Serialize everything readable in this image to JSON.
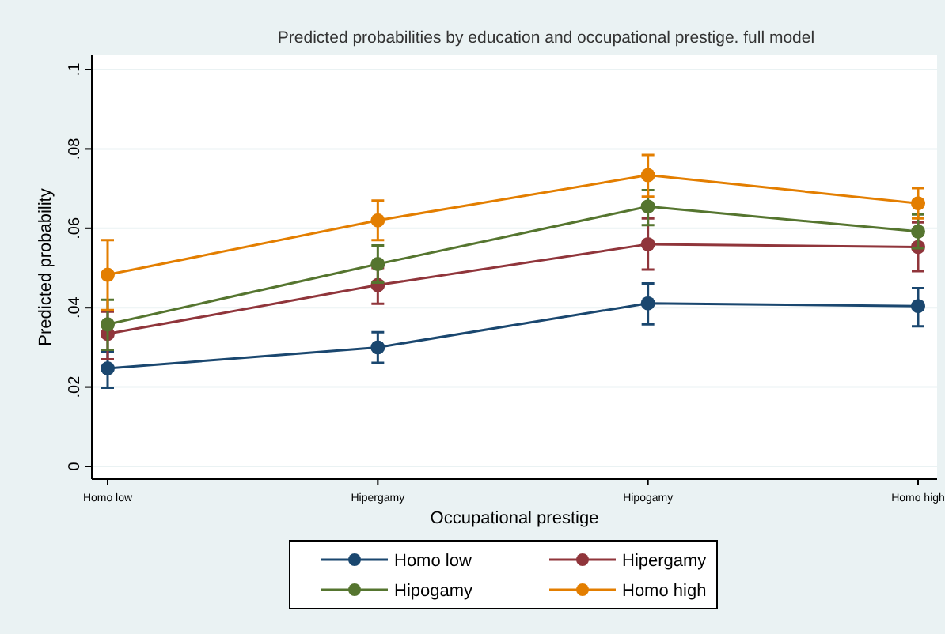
{
  "chart_data": {
    "type": "line",
    "title": "Predicted probabilities by education and occupational prestige. full model",
    "xlabel": "Occupational prestige",
    "ylabel": "Predicted probability",
    "categories": [
      "Homo low",
      "Hipergamy",
      "Hipogamy",
      "Homo high"
    ],
    "series": [
      {
        "name": "Homo low",
        "color": "#1a476f",
        "values": [
          0.0247,
          0.03,
          0.0411,
          0.0404
        ],
        "errors": [
          [
            0.0198,
            0.029
          ],
          [
            0.0261,
            0.0338
          ],
          [
            0.0358,
            0.0461
          ],
          [
            0.0353,
            0.0449
          ]
        ]
      },
      {
        "name": "Hipergamy",
        "color": "#90353b",
        "values": [
          0.0334,
          0.0457,
          0.056,
          0.0553
        ],
        "errors": [
          [
            0.027,
            0.039
          ],
          [
            0.041,
            0.05
          ],
          [
            0.0496,
            0.0625
          ],
          [
            0.0492,
            0.0615
          ]
        ]
      },
      {
        "name": "Hipogamy",
        "color": "#55752f",
        "values": [
          0.0358,
          0.051,
          0.0655,
          0.0592
        ],
        "errors": [
          [
            0.0294,
            0.042
          ],
          [
            0.0463,
            0.0557
          ],
          [
            0.0608,
            0.0696
          ],
          [
            0.055,
            0.0635
          ]
        ]
      },
      {
        "name": "Homo high",
        "color": "#e37e00",
        "values": [
          0.0483,
          0.062,
          0.0734,
          0.0663
        ],
        "errors": [
          [
            0.0394,
            0.057
          ],
          [
            0.057,
            0.067
          ],
          [
            0.068,
            0.0785
          ],
          [
            0.0625,
            0.0701
          ]
        ]
      }
    ],
    "ylim": [
      0,
      0.1
    ],
    "yticks": [
      {
        "value": 0,
        "label": "0"
      },
      {
        "value": 0.02,
        "label": ".02"
      },
      {
        "value": 0.04,
        "label": ".04"
      },
      {
        "value": 0.06,
        "label": ".06"
      },
      {
        "value": 0.08,
        "label": ".08"
      },
      {
        "value": 0.1,
        "label": ".1"
      }
    ],
    "grid": "y",
    "legend": "bottom",
    "marker": "circle",
    "line_style": "solid"
  }
}
